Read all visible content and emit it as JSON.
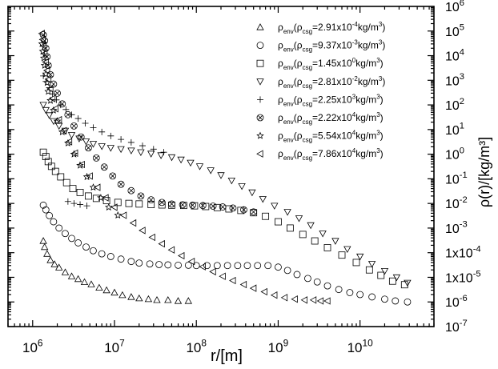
{
  "chart_data": {
    "type": "scatter",
    "title": "",
    "xlabel": "r/[m]",
    "ylabel": "ρ(r)/[kg/m³]",
    "xscale": "log",
    "yscale": "log",
    "xlim": [
      500000,
      80000000000
    ],
    "ylim": [
      1e-07,
      1000000
    ],
    "grid": false,
    "legend_position": "top-right",
    "x_ticks": [
      {
        "base": "10",
        "exp": "6",
        "value": 1000000
      },
      {
        "base": "10",
        "exp": "7",
        "value": 10000000
      },
      {
        "base": "10",
        "exp": "8",
        "value": 100000000
      },
      {
        "base": "10",
        "exp": "9",
        "value": 1000000000
      },
      {
        "base": "10",
        "exp": "10",
        "value": 10000000000
      }
    ],
    "y_ticks": [
      {
        "base": "10",
        "exp": "6",
        "value": 1000000
      },
      {
        "base": "10",
        "exp": "5",
        "value": 100000
      },
      {
        "base": "10",
        "exp": "4",
        "value": 10000
      },
      {
        "base": "10",
        "exp": "3",
        "value": 1000
      },
      {
        "base": "10",
        "exp": "2",
        "value": 100
      },
      {
        "base": "10",
        "exp": "1",
        "value": 10
      },
      {
        "base": "10",
        "exp": "0",
        "value": 1
      },
      {
        "base": "10",
        "exp": "-1",
        "value": 0.1
      },
      {
        "base": "10",
        "exp": "-2",
        "value": 0.01
      },
      {
        "base": "10",
        "exp": "-3",
        "value": 0.001
      },
      {
        "base": "1x10",
        "exp": "-4",
        "value": 0.0001
      },
      {
        "base": "1x10",
        "exp": "-5",
        "value": 1e-05
      },
      {
        "base": "10",
        "exp": "-6",
        "value": 1e-06
      },
      {
        "base": "10",
        "exp": "-7",
        "value": 1e-07
      }
    ],
    "series": [
      {
        "name": "ρenv(ρcsg=2.91x10⁻⁴kg/m³)",
        "marker": "triangle-up",
        "legend_mantissa": "2.91x10",
        "legend_exp": "-4",
        "points": [
          [
            1350000,
            0.0003
          ],
          [
            1400000,
            0.00017
          ],
          [
            1500000,
            9e-05
          ],
          [
            1650000,
            5e-05
          ],
          [
            1850000,
            3.4e-05
          ],
          [
            2100000,
            2.5e-05
          ],
          [
            2500000,
            1.6e-05
          ],
          [
            3000000,
            1.1e-05
          ],
          [
            3600000,
            8.5e-06
          ],
          [
            4300000,
            6.4e-06
          ],
          [
            5200000,
            5.2e-06
          ],
          [
            6500000,
            3.8e-06
          ],
          [
            8000000,
            3e-06
          ],
          [
            10000000,
            2.4e-06
          ],
          [
            12500000,
            1.9e-06
          ],
          [
            16000000,
            1.6e-06
          ],
          [
            20000000,
            1.4e-06
          ],
          [
            26000000,
            1.3e-06
          ],
          [
            33000000,
            1.2e-06
          ],
          [
            45000000,
            1.2e-06
          ],
          [
            60000000,
            1.1e-06
          ],
          [
            80000000,
            1.1e-06
          ]
        ]
      },
      {
        "name": "ρenv(ρcsg=9.37x10⁻³kg/m³)",
        "marker": "circle",
        "legend_mantissa": "9.37x10",
        "legend_exp": "-3",
        "points": [
          [
            1350000,
            0.0085
          ],
          [
            1450000,
            0.0055
          ],
          [
            1600000,
            0.0032
          ],
          [
            1800000,
            0.0018
          ],
          [
            2100000,
            0.001
          ],
          [
            2500000,
            0.0006
          ],
          [
            3000000,
            0.00038
          ],
          [
            3600000,
            0.00025
          ],
          [
            4500000,
            0.00017
          ],
          [
            5500000,
            0.00012
          ],
          [
            7000000,
            9e-05
          ],
          [
            9000000,
            7e-05
          ],
          [
            12000000,
            5.5e-05
          ],
          [
            16000000,
            4.4e-05
          ],
          [
            20000000,
            3.8e-05
          ],
          [
            27000000,
            3.5e-05
          ],
          [
            35000000,
            3.3e-05
          ],
          [
            45000000,
            3.2e-05
          ],
          [
            60000000,
            3.1e-05
          ],
          [
            80000000,
            3.1e-05
          ],
          [
            100000000,
            3e-05
          ],
          [
            135000000,
            3e-05
          ],
          [
            180000000,
            3e-05
          ],
          [
            240000000,
            3e-05
          ],
          [
            320000000,
            3e-05
          ],
          [
            420000000,
            3e-05
          ],
          [
            560000000,
            3e-05
          ],
          [
            750000000,
            3e-05
          ],
          [
            1000000000,
            2.6e-05
          ],
          [
            1300000000,
            1.9e-05
          ],
          [
            1700000000,
            1.3e-05
          ],
          [
            2300000000,
            9e-06
          ],
          [
            3000000000,
            6.5e-06
          ],
          [
            4000000000,
            4.5e-06
          ],
          [
            5500000000,
            3.2e-06
          ],
          [
            7500000000,
            2.4e-06
          ],
          [
            10000000000,
            2e-06
          ],
          [
            14000000000,
            1.6e-06
          ],
          [
            20000000000,
            1.3e-06
          ],
          [
            27000000000,
            1.1e-06
          ],
          [
            38000000000,
            1e-06
          ]
        ]
      },
      {
        "name": "ρenv(ρcsg=1.45x10⁰kg/m³)",
        "marker": "square",
        "legend_mantissa": "1.45x10",
        "legend_exp": "0",
        "points": [
          [
            1350000,
            1.2
          ],
          [
            1450000,
            0.8
          ],
          [
            1550000,
            0.5
          ],
          [
            1700000,
            0.32
          ],
          [
            1900000,
            0.2
          ],
          [
            2200000,
            0.12
          ],
          [
            2600000,
            0.07
          ],
          [
            3100000,
            0.04
          ],
          [
            3800000,
            0.028
          ],
          [
            4800000,
            0.02
          ],
          [
            6000000,
            0.016
          ],
          [
            8000000,
            0.013
          ],
          [
            11000000,
            0.011
          ],
          [
            15000000,
            0.01
          ],
          [
            20000000,
            0.0095
          ],
          [
            28000000,
            0.009
          ],
          [
            38000000,
            0.0087
          ],
          [
            50000000,
            0.0085
          ],
          [
            70000000,
            0.0083
          ],
          [
            95000000,
            0.008
          ],
          [
            130000000,
            0.0075
          ],
          [
            180000000,
            0.0068
          ],
          [
            250000000,
            0.006
          ],
          [
            350000000,
            0.0052
          ],
          [
            500000000,
            0.0042
          ],
          [
            700000000,
            0.003
          ],
          [
            1000000000,
            0.0018
          ],
          [
            1400000000,
            0.001
          ],
          [
            2000000000,
            0.00055
          ],
          [
            2800000000,
            0.0003
          ],
          [
            4000000000,
            0.00016
          ],
          [
            6000000000,
            8e-05
          ],
          [
            9000000000,
            4e-05
          ],
          [
            13000000000,
            2e-05
          ],
          [
            18000000000,
            1.2e-05
          ],
          [
            25000000000,
            7e-06
          ],
          [
            35000000000,
            5e-06
          ]
        ]
      },
      {
        "name": "ρenv(ρcsg=2.81x10⁻²kg/m³)",
        "marker": "triangle-down",
        "legend_mantissa": "2.81x10",
        "legend_exp": "-2",
        "points": [
          [
            1350000,
            100
          ],
          [
            1450000,
            62
          ],
          [
            1600000,
            38
          ],
          [
            1800000,
            22
          ],
          [
            2100000,
            14
          ],
          [
            2500000,
            9
          ],
          [
            3000000,
            6
          ],
          [
            3700000,
            4.3
          ],
          [
            4500000,
            3.3
          ],
          [
            5500000,
            2.6
          ],
          [
            7000000,
            2.1
          ],
          [
            9000000,
            1.8
          ],
          [
            12000000,
            1.6
          ],
          [
            16000000,
            1.4
          ],
          [
            21000000,
            1.2
          ],
          [
            28000000,
            1.05
          ],
          [
            37000000,
            0.9
          ],
          [
            50000000,
            0.75
          ],
          [
            65000000,
            0.6
          ],
          [
            85000000,
            0.45
          ],
          [
            110000000,
            0.32
          ],
          [
            150000000,
            0.22
          ],
          [
            200000000,
            0.14
          ],
          [
            270000000,
            0.085
          ],
          [
            360000000,
            0.05
          ],
          [
            480000000,
            0.028
          ],
          [
            650000000,
            0.015
          ],
          [
            900000000,
            0.008
          ],
          [
            1300000000,
            0.0045
          ],
          [
            1800000000,
            0.0025
          ],
          [
            2500000000,
            0.0013
          ],
          [
            3500000000,
            0.0006
          ],
          [
            5000000000,
            0.0003
          ],
          [
            7000000000,
            0.00014
          ],
          [
            10000000000,
            7e-05
          ],
          [
            14000000000,
            3.5e-05
          ],
          [
            20000000000,
            1.8e-05
          ],
          [
            28000000000,
            1e-05
          ],
          [
            38000000000,
            6e-06
          ]
        ]
      },
      {
        "name": "ρenv(ρcsg=2.25x10³kg/m³)",
        "marker": "plus",
        "legend_mantissa": "2.25x10",
        "legend_exp": "3",
        "points": [
          [
            1350000,
            1500
          ],
          [
            1450000,
            900
          ],
          [
            1600000,
            500
          ],
          [
            1750000,
            280
          ],
          [
            1950000,
            160
          ],
          [
            2200000,
            100
          ],
          [
            2550000,
            65
          ],
          [
            3000000,
            40
          ],
          [
            3600000,
            28
          ],
          [
            4400000,
            18
          ],
          [
            5500000,
            12
          ],
          [
            7000000,
            8
          ],
          [
            9000000,
            5.5
          ],
          [
            12000000,
            4
          ],
          [
            16000000,
            3
          ],
          [
            22000000,
            2.2
          ],
          [
            30000000,
            1.6
          ],
          [
            40000000,
            1.2
          ],
          [
            2700000,
            0.012
          ],
          [
            3200000,
            0.01
          ],
          [
            3800000,
            0.009
          ],
          [
            4600000,
            0.008
          ]
        ]
      },
      {
        "name": "ρenv(ρcsg=2.22x10⁴kg/m³)",
        "marker": "circle-x",
        "legend_mantissa": "2.22x10",
        "legend_exp": "4",
        "points": [
          [
            1350000,
            70000
          ],
          [
            1400000,
            40000
          ],
          [
            1450000,
            20000
          ],
          [
            1500000,
            9000
          ],
          [
            1550000,
            4000
          ],
          [
            1650000,
            1700
          ],
          [
            1800000,
            700
          ],
          [
            2000000,
            300
          ],
          [
            2300000,
            110
          ],
          [
            2700000,
            40
          ],
          [
            3200000,
            14
          ],
          [
            3900000,
            5
          ],
          [
            4800000,
            1.8
          ],
          [
            6000000,
            0.7
          ],
          [
            7500000,
            0.3
          ],
          [
            9500000,
            0.13
          ],
          [
            12000000,
            0.06
          ],
          [
            16000000,
            0.033
          ],
          [
            21000000,
            0.02
          ],
          [
            28000000,
            0.014
          ],
          [
            38000000,
            0.011
          ],
          [
            50000000,
            0.0095
          ],
          [
            68000000,
            0.0088
          ],
          [
            90000000,
            0.0085
          ],
          [
            120000000,
            0.0082
          ],
          [
            160000000,
            0.0078
          ],
          [
            210000000,
            0.0072
          ],
          [
            280000000,
            0.0065
          ],
          [
            380000000,
            0.0055
          ],
          [
            500000000,
            0.0045
          ]
        ]
      },
      {
        "name": "ρenv(ρcsg=5.54x10⁴kg/m³)",
        "marker": "star",
        "legend_mantissa": "5.54x10",
        "legend_exp": "4",
        "points": [
          [
            1300000,
            30000
          ],
          [
            1330000,
            15000
          ],
          [
            1370000,
            8000
          ],
          [
            1400000,
            4000
          ],
          [
            1450000,
            1800
          ],
          [
            1500000,
            800
          ],
          [
            1550000,
            350
          ],
          [
            1650000,
            150
          ],
          [
            1800000,
            60
          ],
          [
            2000000,
            22
          ],
          [
            2300000,
            8
          ],
          [
            2700000,
            2.8
          ],
          [
            3200000,
            1
          ],
          [
            3800000,
            0.35
          ],
          [
            4600000,
            0.12
          ],
          [
            5500000,
            0.045
          ],
          [
            6800000,
            0.017
          ],
          [
            8500000,
            0.007
          ],
          [
            11000000,
            0.0033
          ]
        ]
      },
      {
        "name": "ρenv(ρcsg=7.86x10⁴kg/m³)",
        "marker": "triangle-left",
        "legend_mantissa": "7.86x10",
        "legend_exp": "4",
        "points": [
          [
            1300000,
            80000
          ],
          [
            1330000,
            45000
          ],
          [
            1360000,
            25000
          ],
          [
            1400000,
            12000
          ],
          [
            1450000,
            5500
          ],
          [
            1500000,
            2500
          ],
          [
            1560000,
            1100
          ],
          [
            1650000,
            450
          ],
          [
            1750000,
            180
          ],
          [
            1900000,
            70
          ],
          [
            2100000,
            25
          ],
          [
            2400000,
            9
          ],
          [
            2800000,
            3.2
          ],
          [
            3300000,
            1.1
          ],
          [
            4000000,
            0.38
          ],
          [
            5000000,
            0.13
          ],
          [
            6200000,
            0.045
          ],
          [
            7800000,
            0.017
          ],
          [
            10000000,
            0.007
          ],
          [
            13000000,
            0.0033
          ],
          [
            17000000,
            0.0016
          ],
          [
            22000000,
            0.0008
          ],
          [
            29000000,
            0.00042
          ],
          [
            38000000,
            0.00023
          ],
          [
            50000000,
            0.00013
          ],
          [
            66000000,
            7.5e-05
          ],
          [
            88000000,
            4.4e-05
          ],
          [
            120000000,
            2.7e-05
          ],
          [
            160000000,
            1.7e-05
          ],
          [
            210000000,
            1.1e-05
          ],
          [
            280000000,
            7.4e-06
          ],
          [
            380000000,
            5.1e-06
          ],
          [
            500000000,
            3.6e-06
          ],
          [
            680000000,
            2.6e-06
          ],
          [
            900000000,
            1.9e-06
          ],
          [
            1200000000,
            1.5e-06
          ],
          [
            1600000000,
            1.3e-06
          ],
          [
            2100000000,
            1.2e-06
          ],
          [
            2700000000,
            1.2e-06
          ],
          [
            3300000000,
            1.1e-06
          ],
          [
            4000000000,
            1.1e-06
          ]
        ]
      }
    ]
  }
}
